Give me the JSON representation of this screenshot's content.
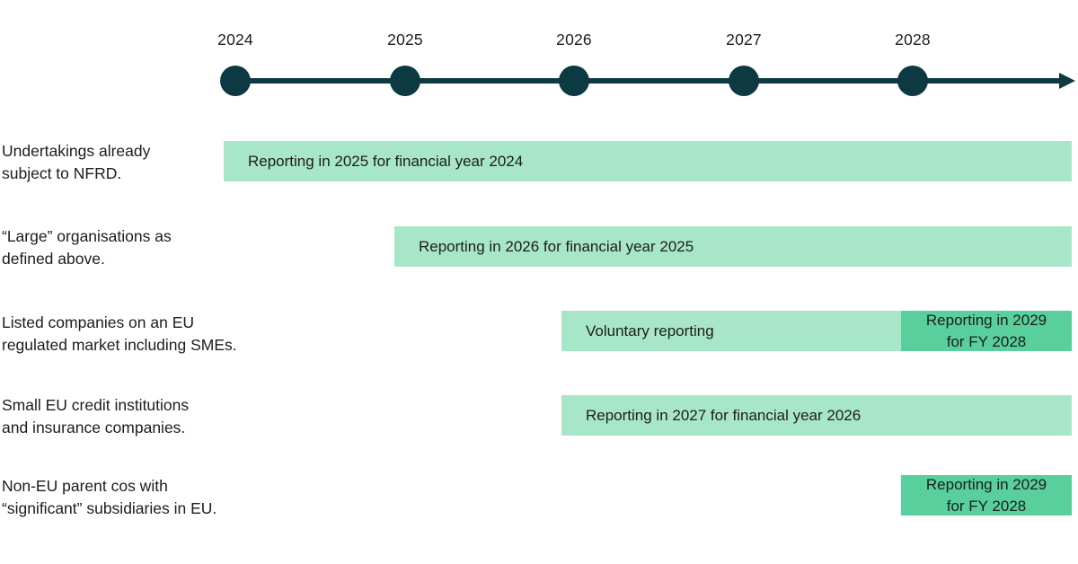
{
  "colors": {
    "light_green": "#a7e6c9",
    "dark_green": "#58cf9c",
    "axis": "#0d3a42",
    "text": "#1c1c1c",
    "background": "#ffffff"
  },
  "timeline": {
    "years": [
      "2024",
      "2025",
      "2026",
      "2027",
      "2028"
    ]
  },
  "chart_data": {
    "type": "table",
    "title": "",
    "x_axis_years": [
      2024,
      2025,
      2026,
      2027,
      2028
    ],
    "rows": [
      {
        "group": "Undertakings already subject to NFRD.",
        "bars": [
          {
            "text": "Reporting in 2025 for financial year 2024",
            "style": "light",
            "starts_at_year": 2024,
            "ends": "right-edge"
          }
        ]
      },
      {
        "group": "“Large” organisations as defined above.",
        "bars": [
          {
            "text": "Reporting in 2026 for financial year 2025",
            "style": "light",
            "starts_at_year": 2025,
            "ends": "right-edge"
          }
        ]
      },
      {
        "group": "Listed companies on an EU regulated market including SMEs.",
        "bars": [
          {
            "text": "Voluntary reporting",
            "style": "light",
            "starts_at_year": 2026,
            "ends_at_year": 2028
          },
          {
            "text": "Reporting in 2029 for FY 2028",
            "style": "dark",
            "starts_at_year": 2028,
            "ends": "right-edge"
          }
        ]
      },
      {
        "group": "Small EU credit institutions and insurance companies.",
        "bars": [
          {
            "text": "Reporting in 2027 for financial year 2026",
            "style": "light",
            "starts_at_year": 2026,
            "ends": "right-edge"
          }
        ]
      },
      {
        "group": "Non-EU parent cos with “significant” subsidiaries in EU.",
        "bars": [
          {
            "text": "Reporting in 2029 for FY 2028",
            "style": "dark",
            "starts_at_year": 2028,
            "ends": "right-edge"
          }
        ]
      }
    ]
  },
  "rows": [
    {
      "label_lines": [
        "Undertakings already",
        "subject to NFRD."
      ],
      "bars": [
        {
          "variant": "light",
          "lines": [
            "Reporting in 2025 for financial year 2024"
          ]
        }
      ]
    },
    {
      "label_lines": [
        "“Large” organisations as",
        "defined above."
      ],
      "bars": [
        {
          "variant": "light",
          "lines": [
            "Reporting in 2026 for financial year 2025"
          ]
        }
      ]
    },
    {
      "label_lines": [
        "Listed companies on an EU",
        "regulated market including SMEs."
      ],
      "bars": [
        {
          "variant": "light",
          "lines": [
            "Voluntary reporting"
          ]
        },
        {
          "variant": "dark",
          "lines": [
            "Reporting in 2029",
            "for FY 2028"
          ]
        }
      ]
    },
    {
      "label_lines": [
        "Small EU credit institutions",
        "and insurance companies."
      ],
      "bars": [
        {
          "variant": "light",
          "lines": [
            "Reporting in 2027 for financial year 2026"
          ]
        }
      ]
    },
    {
      "label_lines": [
        "Non-EU parent cos with",
        "“significant” subsidiaries in EU."
      ],
      "bars": [
        {
          "variant": "dark",
          "lines": [
            "Reporting in 2029",
            "for FY 2028"
          ]
        }
      ]
    }
  ]
}
